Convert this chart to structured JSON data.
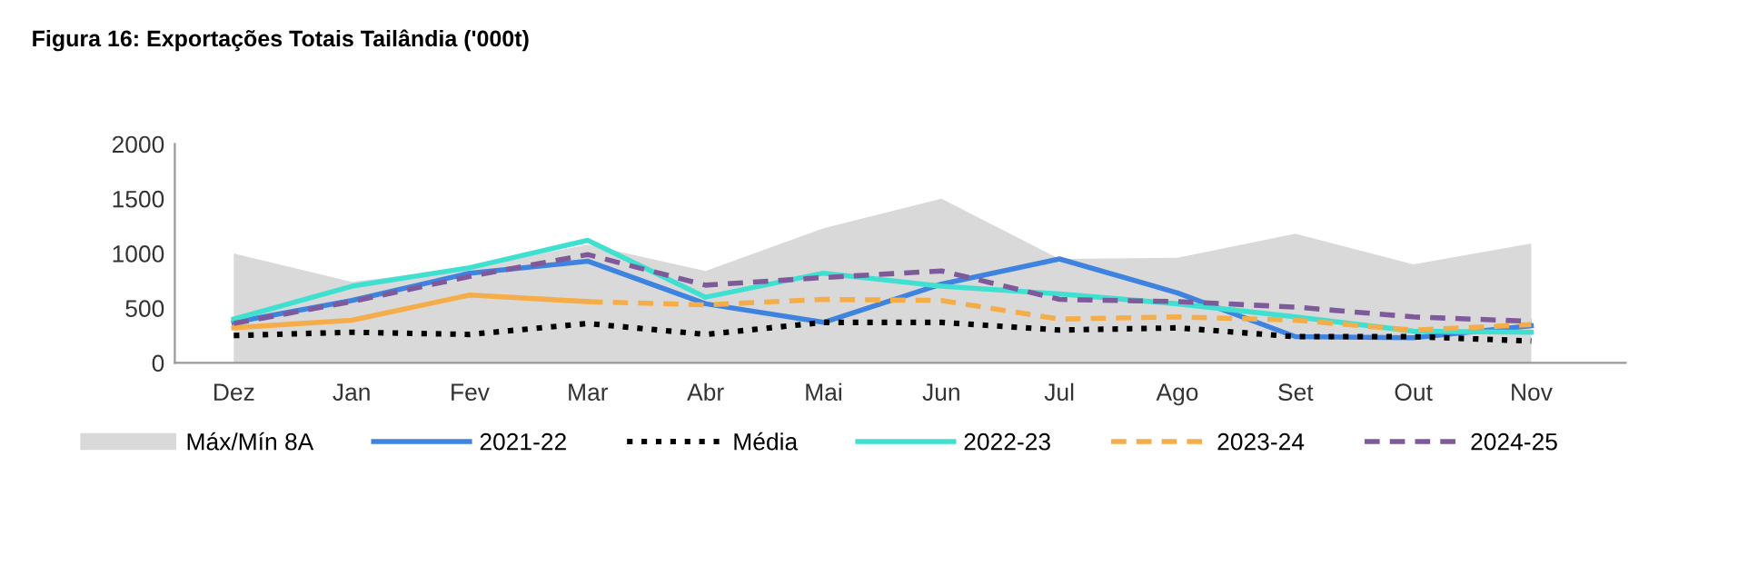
{
  "chart_data": {
    "type": "line",
    "title": "Figura 16: Exportações Totais Tailândia ('000t)",
    "categories": [
      "Dez",
      "Jan",
      "Fev",
      "Mar",
      "Abr",
      "Mai",
      "Jun",
      "Jul",
      "Ago",
      "Set",
      "Out",
      "Nov"
    ],
    "series": [
      {
        "name": "Máx/Mín 8A",
        "type": "area",
        "color": "#d9d9d9",
        "values": [
          1000,
          740,
          870,
          1080,
          840,
          1230,
          1500,
          950,
          960,
          1180,
          900,
          1090
        ]
      },
      {
        "name": "2021-22",
        "color": "#3f83e0",
        "line_style": "solid",
        "values": [
          370,
          570,
          820,
          930,
          540,
          370,
          720,
          950,
          640,
          240,
          230,
          340
        ]
      },
      {
        "name": "Média",
        "color": "#000000",
        "line_style": "dotted",
        "values": [
          250,
          280,
          260,
          360,
          260,
          370,
          370,
          300,
          320,
          240,
          240,
          200
        ]
      },
      {
        "name": "2022-23",
        "color": "#40e0d0",
        "line_style": "solid",
        "values": [
          400,
          700,
          870,
          1120,
          600,
          820,
          700,
          630,
          540,
          420,
          290,
          280
        ]
      },
      {
        "color": "#f5ad4a",
        "line_style": "solid",
        "values": [
          320,
          390,
          620,
          560,
          null,
          null,
          null,
          null,
          null,
          null,
          null,
          null
        ]
      },
      {
        "name": "2023-24",
        "color": "#f5ad4a",
        "line_style": "dashed",
        "values": [
          null,
          null,
          null,
          560,
          530,
          580,
          570,
          400,
          420,
          390,
          300,
          350
        ]
      },
      {
        "name": "2024-25",
        "color": "#7f5a9a",
        "line_style": "dashed",
        "values": [
          360,
          560,
          790,
          990,
          710,
          780,
          840,
          580,
          560,
          510,
          420,
          380
        ]
      }
    ],
    "ylim": [
      0,
      2000
    ],
    "yticks": [
      0,
      500,
      1000,
      1500,
      2000
    ],
    "grid": false,
    "legend": "bottom",
    "marker": "none"
  }
}
